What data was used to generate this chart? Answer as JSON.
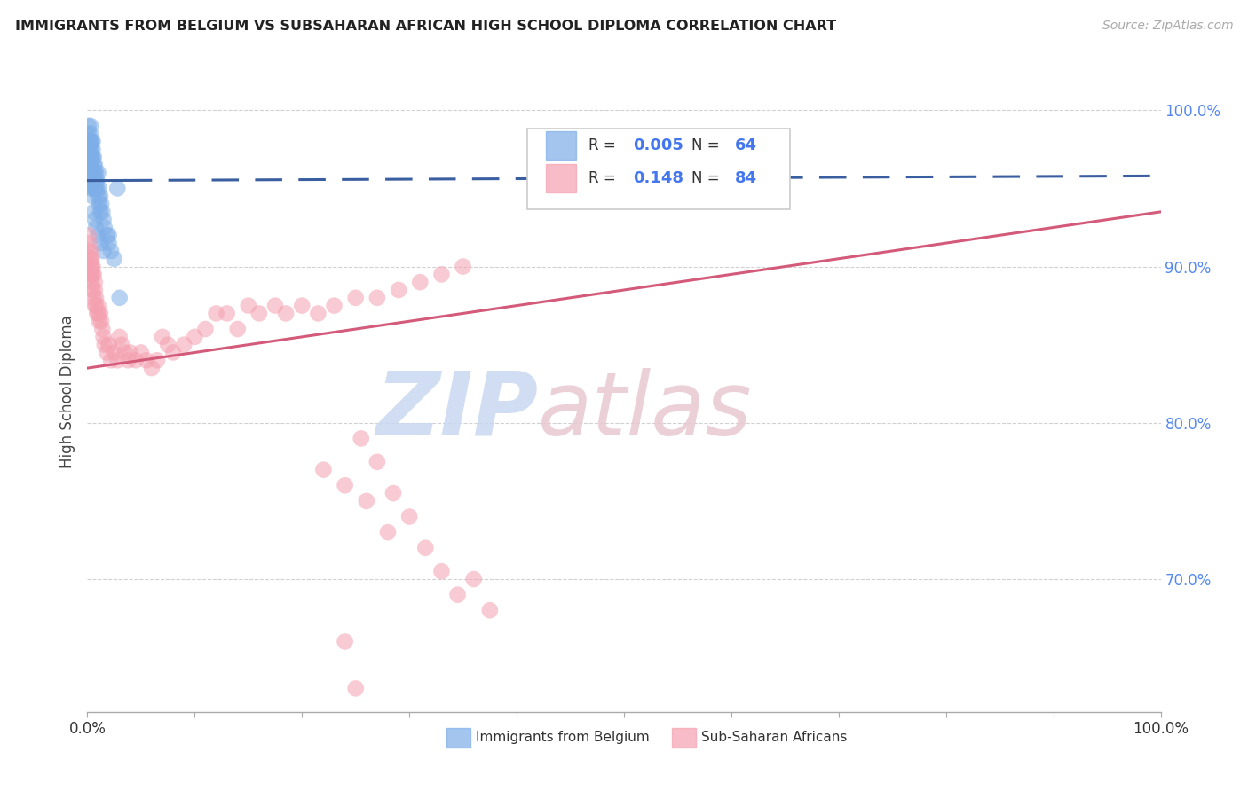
{
  "title": "IMMIGRANTS FROM BELGIUM VS SUBSAHARAN AFRICAN HIGH SCHOOL DIPLOMA CORRELATION CHART",
  "source": "Source: ZipAtlas.com",
  "ylabel": "High School Diploma",
  "legend_blue_label": "Immigrants from Belgium",
  "legend_pink_label": "Sub-Saharan Africans",
  "R_blue": "0.005",
  "N_blue": "64",
  "R_pink": "0.148",
  "N_pink": "84",
  "blue_color": "#7eaee8",
  "pink_color": "#f4a0b0",
  "blue_line_color": "#3a5fa0",
  "pink_line_color": "#d45a7a",
  "watermark_zip": "ZIP",
  "watermark_atlas": "atlas",
  "xmin": 0.0,
  "xmax": 1.0,
  "ymin": 0.615,
  "ymax": 1.025,
  "ytick_vals": [
    0.7,
    0.8,
    0.9,
    1.0
  ],
  "ytick_labels": [
    "70.0%",
    "80.0%",
    "90.0%",
    "100.0%"
  ],
  "blue_dots_x": [
    0.001,
    0.001,
    0.001,
    0.002,
    0.002,
    0.002,
    0.002,
    0.002,
    0.003,
    0.003,
    0.003,
    0.003,
    0.003,
    0.003,
    0.004,
    0.004,
    0.004,
    0.004,
    0.004,
    0.005,
    0.005,
    0.005,
    0.005,
    0.005,
    0.006,
    0.006,
    0.006,
    0.006,
    0.007,
    0.007,
    0.007,
    0.007,
    0.008,
    0.008,
    0.008,
    0.009,
    0.009,
    0.01,
    0.01,
    0.011,
    0.011,
    0.012,
    0.012,
    0.013,
    0.014,
    0.015,
    0.016,
    0.018,
    0.02,
    0.022,
    0.025,
    0.028,
    0.03,
    0.002,
    0.003,
    0.004,
    0.005,
    0.006,
    0.007,
    0.008,
    0.01,
    0.012,
    0.015,
    0.02
  ],
  "blue_dots_y": [
    0.99,
    0.985,
    0.975,
    0.98,
    0.975,
    0.97,
    0.965,
    0.96,
    0.99,
    0.985,
    0.98,
    0.975,
    0.97,
    0.965,
    0.98,
    0.97,
    0.96,
    0.955,
    0.95,
    0.98,
    0.975,
    0.97,
    0.96,
    0.955,
    0.97,
    0.965,
    0.96,
    0.955,
    0.965,
    0.96,
    0.955,
    0.95,
    0.96,
    0.955,
    0.95,
    0.955,
    0.95,
    0.96,
    0.945,
    0.95,
    0.94,
    0.945,
    0.935,
    0.94,
    0.935,
    0.93,
    0.925,
    0.92,
    0.915,
    0.91,
    0.905,
    0.95,
    0.88,
    0.96,
    0.955,
    0.95,
    0.945,
    0.935,
    0.93,
    0.925,
    0.92,
    0.915,
    0.91,
    0.92
  ],
  "pink_dots_x": [
    0.001,
    0.001,
    0.002,
    0.002,
    0.002,
    0.003,
    0.003,
    0.003,
    0.003,
    0.004,
    0.004,
    0.004,
    0.004,
    0.005,
    0.005,
    0.005,
    0.006,
    0.006,
    0.007,
    0.007,
    0.007,
    0.008,
    0.008,
    0.009,
    0.01,
    0.01,
    0.011,
    0.012,
    0.013,
    0.014,
    0.015,
    0.016,
    0.018,
    0.02,
    0.022,
    0.025,
    0.028,
    0.03,
    0.032,
    0.035,
    0.038,
    0.04,
    0.045,
    0.05,
    0.055,
    0.06,
    0.065,
    0.07,
    0.075,
    0.08,
    0.09,
    0.1,
    0.11,
    0.12,
    0.13,
    0.14,
    0.15,
    0.16,
    0.175,
    0.185,
    0.2,
    0.215,
    0.23,
    0.25,
    0.27,
    0.29,
    0.31,
    0.33,
    0.35,
    0.255,
    0.27,
    0.285,
    0.3,
    0.315,
    0.33,
    0.345,
    0.36,
    0.375,
    0.28,
    0.26,
    0.24,
    0.22,
    0.24,
    0.25
  ],
  "pink_dots_y": [
    0.92,
    0.91,
    0.915,
    0.905,
    0.895,
    0.91,
    0.905,
    0.9,
    0.895,
    0.905,
    0.9,
    0.895,
    0.89,
    0.9,
    0.895,
    0.885,
    0.895,
    0.88,
    0.89,
    0.885,
    0.875,
    0.88,
    0.875,
    0.87,
    0.875,
    0.87,
    0.865,
    0.87,
    0.865,
    0.86,
    0.855,
    0.85,
    0.845,
    0.85,
    0.84,
    0.845,
    0.84,
    0.855,
    0.85,
    0.845,
    0.84,
    0.845,
    0.84,
    0.845,
    0.84,
    0.835,
    0.84,
    0.855,
    0.85,
    0.845,
    0.85,
    0.855,
    0.86,
    0.87,
    0.87,
    0.86,
    0.875,
    0.87,
    0.875,
    0.87,
    0.875,
    0.87,
    0.875,
    0.88,
    0.88,
    0.885,
    0.89,
    0.895,
    0.9,
    0.79,
    0.775,
    0.755,
    0.74,
    0.72,
    0.705,
    0.69,
    0.7,
    0.68,
    0.73,
    0.75,
    0.76,
    0.77,
    0.66,
    0.63
  ],
  "blue_line_x0": 0.0,
  "blue_line_x_solid_end": 0.035,
  "blue_line_y0": 0.955,
  "blue_line_y1": 0.958,
  "pink_line_x0": 0.0,
  "pink_line_y0": 0.835,
  "pink_line_y1": 0.935
}
